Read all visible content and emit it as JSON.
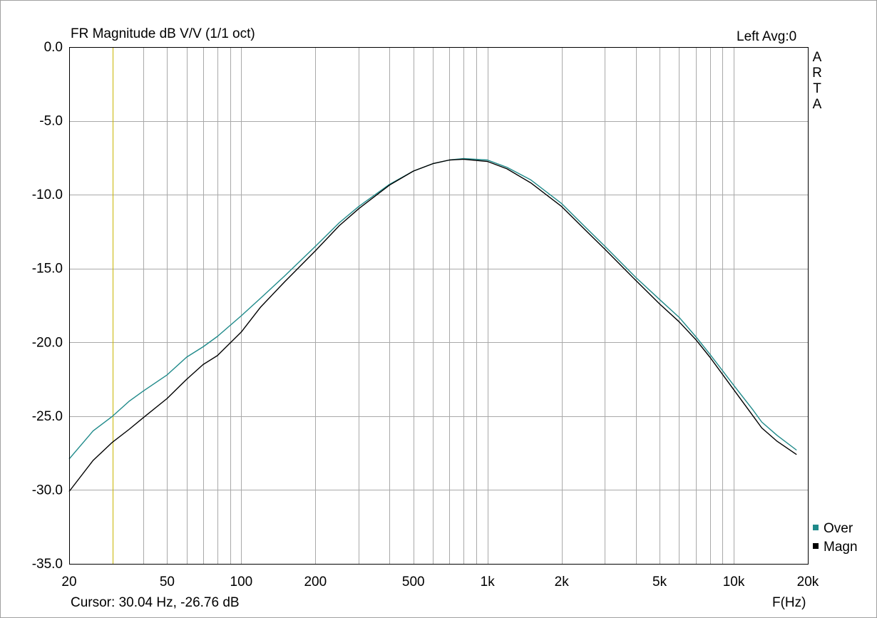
{
  "title": "FR Magnitude dB V/V (1/1 oct)",
  "channel_info": "Left  Avg:0",
  "brand_letters": [
    "A",
    "R",
    "T",
    "A"
  ],
  "cursor_readout": "Cursor: 30.04 Hz, -26.76 dB",
  "x_unit_label": "F(Hz)",
  "colors": {
    "over": "#1f8a8a",
    "magn": "#000000",
    "grid": "#a9a9a9",
    "cursor": "#c8b400"
  },
  "chart_data": {
    "type": "line",
    "title": "FR Magnitude dB V/V (1/1 oct)",
    "xlabel": "F(Hz)",
    "ylabel": "",
    "x_scale": "log",
    "xlim": [
      20,
      20000
    ],
    "ylim": [
      -35,
      0
    ],
    "y_ticks": [
      0,
      -5,
      -10,
      -15,
      -20,
      -25,
      -30,
      -35
    ],
    "y_tick_labels": [
      "0.0",
      "-5.0",
      "-10.0",
      "-15.0",
      "-20.0",
      "-25.0",
      "-30.0",
      "-35.0"
    ],
    "x_ticks": [
      20,
      50,
      100,
      200,
      500,
      1000,
      2000,
      5000,
      10000,
      20000
    ],
    "x_tick_labels": [
      "20",
      "50",
      "100",
      "200",
      "500",
      "1k",
      "2k",
      "5k",
      "10k",
      "20k"
    ],
    "grid": true,
    "cursor_x": 30.04,
    "legend": {
      "position": "bottom-right",
      "entries": [
        "Over",
        "Magn"
      ]
    },
    "series": [
      {
        "name": "Over",
        "color": "#1f8a8a",
        "x": [
          20,
          25,
          30,
          35,
          40,
          50,
          60,
          70,
          80,
          100,
          120,
          150,
          200,
          250,
          300,
          400,
          500,
          600,
          700,
          800,
          1000,
          1200,
          1500,
          2000,
          2500,
          3000,
          4000,
          5000,
          6000,
          7000,
          8000,
          10000,
          12000,
          13000,
          15000,
          18000
        ],
        "y": [
          -27.9,
          -26.0,
          -25.0,
          -24.0,
          -23.3,
          -22.2,
          -21.0,
          -20.3,
          -19.6,
          -18.2,
          -17.0,
          -15.5,
          -13.5,
          -11.9,
          -10.8,
          -9.3,
          -8.4,
          -7.9,
          -7.65,
          -7.55,
          -7.65,
          -8.15,
          -9.0,
          -10.6,
          -12.2,
          -13.5,
          -15.6,
          -17.1,
          -18.3,
          -19.6,
          -20.8,
          -22.9,
          -24.6,
          -25.4,
          -26.3,
          -27.3
        ]
      },
      {
        "name": "Magn",
        "color": "#000000",
        "x": [
          20,
          25,
          30,
          35,
          40,
          50,
          60,
          70,
          80,
          100,
          120,
          150,
          200,
          250,
          300,
          400,
          500,
          600,
          700,
          800,
          1000,
          1200,
          1500,
          2000,
          2500,
          3000,
          4000,
          5000,
          6000,
          7000,
          8000,
          10000,
          12000,
          13000,
          15000,
          18000
        ],
        "y": [
          -30.1,
          -28.0,
          -26.76,
          -25.9,
          -25.1,
          -23.8,
          -22.5,
          -21.5,
          -20.9,
          -19.3,
          -17.6,
          -15.9,
          -13.8,
          -12.1,
          -10.95,
          -9.35,
          -8.4,
          -7.9,
          -7.65,
          -7.6,
          -7.75,
          -8.25,
          -9.2,
          -10.8,
          -12.4,
          -13.7,
          -15.8,
          -17.4,
          -18.6,
          -19.8,
          -21.0,
          -23.2,
          -25.0,
          -25.8,
          -26.7,
          -27.6
        ]
      }
    ]
  }
}
